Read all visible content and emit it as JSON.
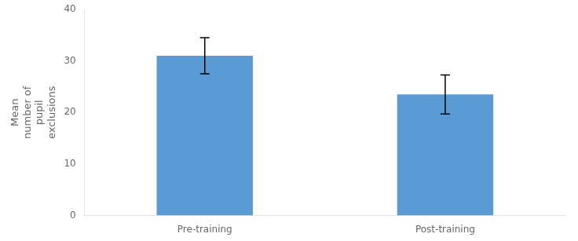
{
  "chart_data": {
    "type": "bar",
    "categories": [
      "Pre-training",
      "Post-training"
    ],
    "values": [
      31.0,
      23.5
    ],
    "errors": [
      3.5,
      3.8
    ],
    "color": "#5B9BD5",
    "ylabel": "Mean\nnumber of\npupil\nexclusions",
    "ylim": [
      0,
      40
    ],
    "yticks": [
      0,
      10,
      20,
      30,
      40
    ],
    "grid": false
  }
}
